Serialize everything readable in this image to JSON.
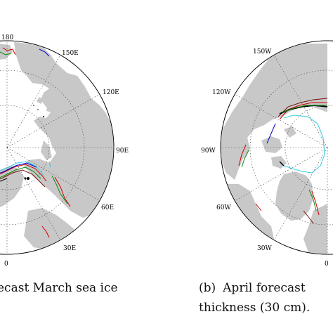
{
  "left_panel": {
    "degree_labels": {
      "top": "180",
      "ne150": "150E",
      "ne120": "120E",
      "e90": "90E",
      "se60": "60E",
      "se30": "30E",
      "bottom": "0"
    },
    "caption_line1": "ecast March sea ice",
    "caption_line2": "."
  },
  "right_panel": {
    "degree_labels": {
      "nw150": "150W",
      "nw120": "120W",
      "w90": "90W",
      "sw60": "60W",
      "sw30": "30W",
      "bottom": "0"
    },
    "caption_label": "(b)",
    "caption_line1": "April  forecast",
    "caption_line2": "thickness (30 cm)."
  },
  "colors": {
    "land": "#c8c8c8",
    "ocean": "#ffffff",
    "contour_red": "#cc0000",
    "contour_darkred": "#7a1010",
    "contour_green": "#0a8a0a",
    "contour_blue": "#0000cc",
    "contour_cyan": "#33ccdd",
    "contour_black": "#000000"
  }
}
